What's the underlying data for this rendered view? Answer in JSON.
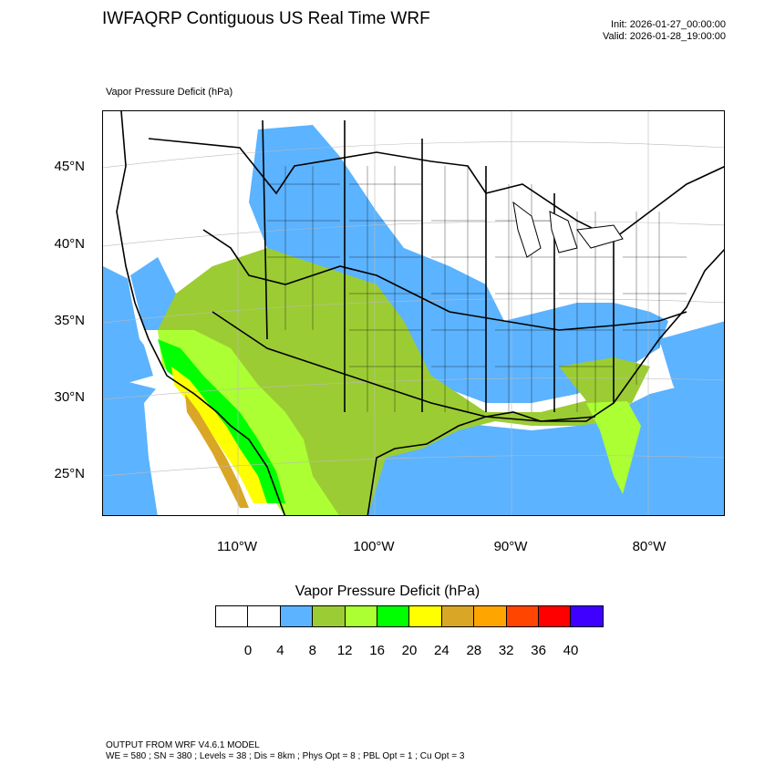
{
  "header": {
    "title": "IWFAQRP Contiguous US Real Time WRF",
    "init": "Init: 2026-01-27_00:00:00",
    "valid": "Valid: 2026-01-28_19:00:00"
  },
  "map": {
    "field_label": "Vapor Pressure Deficit   (hPa)",
    "lat_labels": [
      "45°N",
      "40°N",
      "35°N",
      "30°N",
      "25°N"
    ],
    "lon_labels": [
      "110°W",
      "100°W",
      "90°W",
      "80°W"
    ],
    "colors": {
      "water": "#5cb3ff",
      "vpd_4_8": "#5cb3ff",
      "vpd_8_12": "#9ccc33",
      "vpd_12_16": "#abff33",
      "vpd_16_20": "#00ff00",
      "vpd_20_24": "#ffff00",
      "vpd_24_28": "#d9a626",
      "vpd_28_32": "#ffa500"
    }
  },
  "colorbar": {
    "title": "Vapor Pressure Deficit  (hPa)",
    "colors": [
      "#ffffff",
      "#ffffff",
      "#5cb3ff",
      "#9ccc33",
      "#abff33",
      "#00ff00",
      "#ffff00",
      "#d9a626",
      "#ffa500",
      "#ff4500",
      "#ff0000",
      "#3f00ff"
    ],
    "labels": [
      "0",
      "4",
      "8",
      "12",
      "16",
      "20",
      "24",
      "28",
      "32",
      "36",
      "40"
    ]
  },
  "footer": {
    "line1": "OUTPUT FROM WRF V4.6.1 MODEL",
    "line2": "WE = 580 ; SN = 380 ; Levels = 38 ; Dis = 8km ; Phys Opt = 8 ; PBL Opt = 1 ; Cu Opt = 3"
  }
}
